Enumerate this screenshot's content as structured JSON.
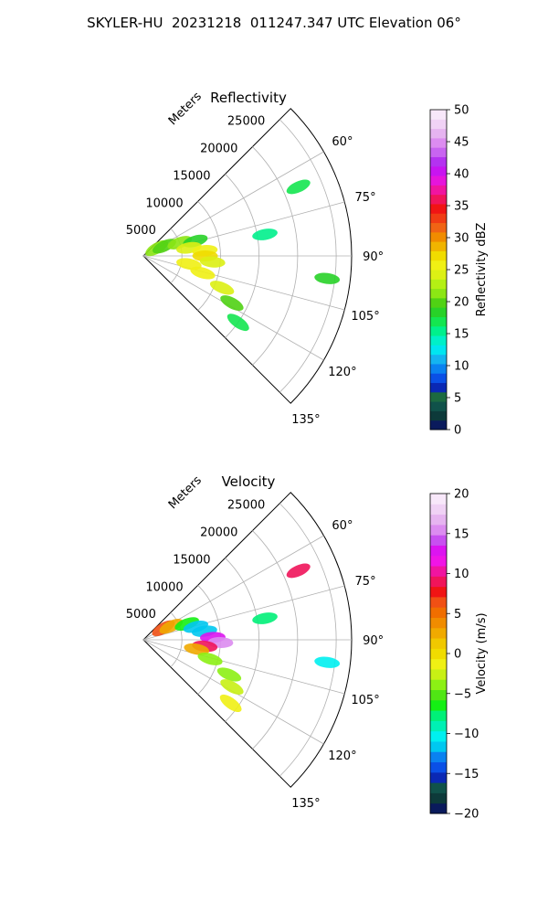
{
  "figure": {
    "title": "SKYLER-HU  20231218  011247.347 UTC Elevation 06°"
  },
  "chart_data": [
    {
      "type": "polar-sector",
      "title": "Reflectivity",
      "range_label": "Meters",
      "range_ticks": [
        5000,
        10000,
        15000,
        20000,
        25000
      ],
      "range_tick_labels": [
        "5000",
        "10000",
        "15000",
        "20000",
        "25000"
      ],
      "range_max": 27000,
      "azimuth_range_deg": [
        45,
        135
      ],
      "azimuth_ticks": [
        60,
        75,
        90,
        105,
        120,
        135
      ],
      "azimuth_tick_labels": [
        "60°",
        "75°",
        "90°",
        "105°",
        "120°",
        "135°"
      ],
      "grid": true,
      "colorbar": {
        "label": "Reflectivity dBZ",
        "vmin": 0,
        "vmax": 50,
        "ticks": [
          0,
          5,
          10,
          15,
          20,
          25,
          30,
          35,
          40,
          45,
          50
        ],
        "tick_labels": [
          "0",
          "5",
          "10",
          "15",
          "20",
          "25",
          "30",
          "35",
          "40",
          "45",
          "50"
        ],
        "colors": [
          "#0a1a5c",
          "#0d3a3a",
          "#10524a",
          "#1c6a40",
          "#0a28b4",
          "#0a50e6",
          "#0a82f0",
          "#14b4f0",
          "#00e6f0",
          "#00f0c8",
          "#00f08c",
          "#14e650",
          "#28d228",
          "#50d214",
          "#8ce614",
          "#b4f014",
          "#dcf014",
          "#f0f014",
          "#f0dc00",
          "#f0b400",
          "#f08c00",
          "#f06414",
          "#f03c14",
          "#f01414",
          "#f0145a",
          "#f014a0",
          "#e614dc",
          "#c814f0",
          "#b432f0",
          "#c864f0",
          "#dc8cf0",
          "#e6b4f0",
          "#f0d2f5",
          "#f8e8fa"
        ]
      },
      "echoes": [
        {
          "az": 60,
          "range": 2000,
          "intensity": 22
        },
        {
          "az": 65,
          "range": 3000,
          "intensity": 20
        },
        {
          "az": 70,
          "range": 5000,
          "intensity": 21
        },
        {
          "az": 74,
          "range": 7000,
          "intensity": 19
        },
        {
          "az": 80,
          "range": 6000,
          "intensity": 24
        },
        {
          "az": 85,
          "range": 8000,
          "intensity": 26
        },
        {
          "az": 90,
          "range": 8000,
          "intensity": 27
        },
        {
          "az": 95,
          "range": 9000,
          "intensity": 24
        },
        {
          "az": 100,
          "range": 6000,
          "intensity": 25
        },
        {
          "az": 106,
          "range": 8000,
          "intensity": 26
        },
        {
          "az": 112,
          "range": 11000,
          "intensity": 24
        },
        {
          "az": 118,
          "range": 13000,
          "intensity": 20
        },
        {
          "az": 125,
          "range": 15000,
          "intensity": 17
        },
        {
          "az": 66,
          "range": 22000,
          "intensity": 17
        },
        {
          "az": 80,
          "range": 16000,
          "intensity": 16
        },
        {
          "az": 97,
          "range": 24000,
          "intensity": 18
        }
      ]
    },
    {
      "type": "polar-sector",
      "title": "Velocity",
      "range_label": "Meters",
      "range_ticks": [
        5000,
        10000,
        15000,
        20000,
        25000
      ],
      "range_tick_labels": [
        "5000",
        "10000",
        "15000",
        "20000",
        "25000"
      ],
      "range_max": 27000,
      "azimuth_range_deg": [
        45,
        135
      ],
      "azimuth_ticks": [
        60,
        75,
        90,
        105,
        120,
        135
      ],
      "azimuth_tick_labels": [
        "60°",
        "75°",
        "90°",
        "105°",
        "120°",
        "135°"
      ],
      "grid": true,
      "colorbar": {
        "label": "Velocity (m/s)",
        "vmin": -20,
        "vmax": 20,
        "ticks": [
          -20,
          -15,
          -10,
          -5,
          0,
          5,
          10,
          15,
          20
        ],
        "tick_labels": [
          "−20",
          "−15",
          "−10",
          "−5",
          "0",
          "5",
          "10",
          "15",
          "20"
        ],
        "colors": [
          "#0a1a5c",
          "#0d3a3a",
          "#10524a",
          "#0a28b4",
          "#0a50e6",
          "#0a82f0",
          "#00c8f0",
          "#00f0f0",
          "#00f0b4",
          "#00f078",
          "#14f014",
          "#50e614",
          "#8cf014",
          "#c8f014",
          "#f0f014",
          "#f0dc00",
          "#f0c800",
          "#f0aa00",
          "#f08c00",
          "#f06e00",
          "#f05014",
          "#f01414",
          "#f0145a",
          "#f014a0",
          "#f014e6",
          "#dc14f0",
          "#c850f0",
          "#dc8cf0",
          "#e6b4f0",
          "#f0d2f5",
          "#f8e8fa"
        ]
      },
      "echoes": [
        {
          "az": 60,
          "range": 3000,
          "intensity": 6
        },
        {
          "az": 64,
          "range": 4000,
          "intensity": 3
        },
        {
          "az": 70,
          "range": 6000,
          "intensity": -6
        },
        {
          "az": 76,
          "range": 7000,
          "intensity": -11
        },
        {
          "az": 82,
          "range": 8000,
          "intensity": -12
        },
        {
          "az": 88,
          "range": 9000,
          "intensity": 13
        },
        {
          "az": 92,
          "range": 10000,
          "intensity": 15
        },
        {
          "az": 96,
          "range": 8000,
          "intensity": 9
        },
        {
          "az": 100,
          "range": 7000,
          "intensity": 2
        },
        {
          "az": 106,
          "range": 9000,
          "intensity": -4
        },
        {
          "az": 112,
          "range": 12000,
          "intensity": -4
        },
        {
          "az": 118,
          "range": 13000,
          "intensity": -2
        },
        {
          "az": 126,
          "range": 14000,
          "intensity": -1
        },
        {
          "az": 66,
          "range": 22000,
          "intensity": 9
        },
        {
          "az": 80,
          "range": 16000,
          "intensity": -8
        },
        {
          "az": 97,
          "range": 24000,
          "intensity": -10
        }
      ]
    }
  ]
}
